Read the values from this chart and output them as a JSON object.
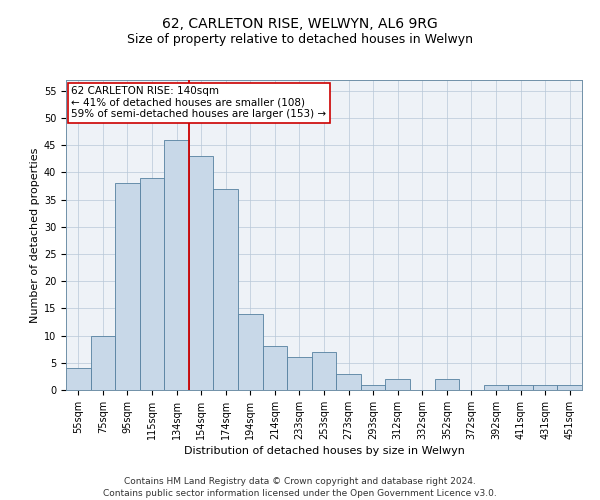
{
  "title1": "62, CARLETON RISE, WELWYN, AL6 9RG",
  "title2": "Size of property relative to detached houses in Welwyn",
  "xlabel": "Distribution of detached houses by size in Welwyn",
  "ylabel": "Number of detached properties",
  "footer1": "Contains HM Land Registry data © Crown copyright and database right 2024.",
  "footer2": "Contains public sector information licensed under the Open Government Licence v3.0.",
  "annotation_line1": "62 CARLETON RISE: 140sqm",
  "annotation_line2": "← 41% of detached houses are smaller (108)",
  "annotation_line3": "59% of semi-detached houses are larger (153) →",
  "bar_labels": [
    "55sqm",
    "75sqm",
    "95sqm",
    "115sqm",
    "134sqm",
    "154sqm",
    "174sqm",
    "194sqm",
    "214sqm",
    "233sqm",
    "253sqm",
    "273sqm",
    "293sqm",
    "312sqm",
    "332sqm",
    "352sqm",
    "372sqm",
    "392sqm",
    "411sqm",
    "431sqm",
    "451sqm"
  ],
  "bar_values": [
    4,
    10,
    38,
    39,
    46,
    43,
    37,
    14,
    8,
    6,
    7,
    3,
    1,
    2,
    0,
    2,
    0,
    1,
    1,
    1,
    1
  ],
  "bar_color": "#c8d8e8",
  "bar_edge_color": "#5580a0",
  "property_line_x": 4.5,
  "property_line_color": "#cc0000",
  "ylim": [
    0,
    57
  ],
  "yticks": [
    0,
    5,
    10,
    15,
    20,
    25,
    30,
    35,
    40,
    45,
    50,
    55
  ],
  "bg_color": "#eef2f7",
  "annotation_box_color": "#ffffff",
  "annotation_box_edge": "#cc0000",
  "title_fontsize": 10,
  "subtitle_fontsize": 9,
  "tick_fontsize": 7,
  "label_fontsize": 8,
  "footer_fontsize": 6.5,
  "annotation_fontsize": 7.5
}
